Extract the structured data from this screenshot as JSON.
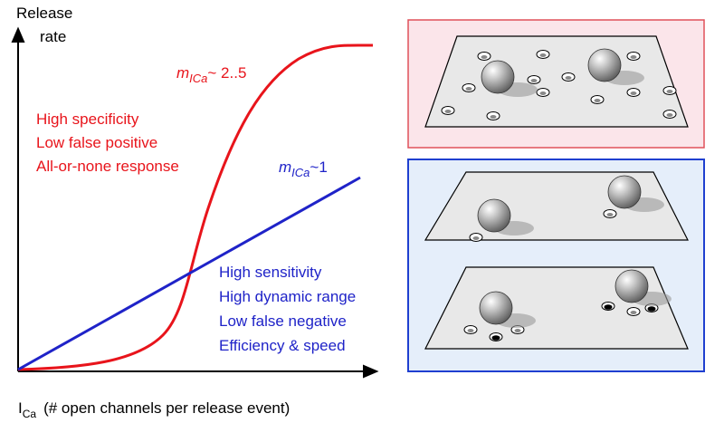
{
  "y_axis_label": [
    "Release",
    "rate"
  ],
  "x_axis_label": {
    "symbol": "I",
    "subscript": "Ca",
    "text": "(# open channels per release event)"
  },
  "red_curve": {
    "label": {
      "symbol": "m",
      "subscript": "ICa",
      "text": "~ 2..5"
    },
    "properties": [
      "High specificity",
      "Low false positive",
      "All-or-none response"
    ]
  },
  "blue_curve": {
    "label": {
      "symbol": "m",
      "subscript": "ICa",
      "text": "~1"
    },
    "properties": [
      "High sensitivity",
      "High dynamic range",
      "Low false negative",
      "Efficiency & speed"
    ]
  }
}
